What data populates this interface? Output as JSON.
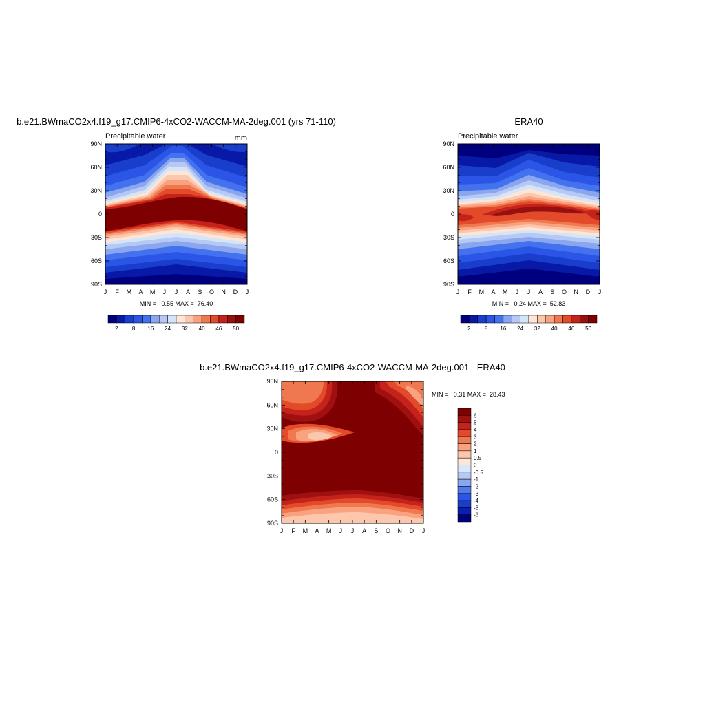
{
  "chart_data": [
    {
      "type": "heatmap",
      "id": "model",
      "title": "b.e21.BWmaCO2x4.f19_g17.CMIP6-4xCO2-WACCM-MA-2deg.001 (yrs 71-110)",
      "subtitle_left": "Precipitable water",
      "subtitle_right": "mm",
      "x": [
        "J",
        "F",
        "M",
        "A",
        "M",
        "J",
        "J",
        "A",
        "S",
        "O",
        "N",
        "D",
        "J"
      ],
      "y": [
        "90S",
        "60S",
        "30S",
        "0",
        "30N",
        "60N",
        "90N"
      ],
      "xlim": [
        0,
        12
      ],
      "ylim": [
        -90,
        90
      ],
      "stats": "MIN =   0.55 MAX =  76.40",
      "colorbar": {
        "levels": [
          2,
          5,
          8,
          12,
          16,
          20,
          24,
          28,
          32,
          36,
          40,
          43,
          46,
          48,
          50
        ],
        "labels": [
          "2",
          "8",
          "16",
          "24",
          "32",
          "40",
          "46",
          "50"
        ],
        "colors": [
          "#00007f",
          "#0719a6",
          "#1a3ecc",
          "#2a55e6",
          "#4472ee",
          "#8aa6ef",
          "#b6c8f4",
          "#d6e4f8",
          "#fde6d6",
          "#fcc7ac",
          "#f9a27f",
          "#f0784f",
          "#e24a2a",
          "#c4221a",
          "#961010",
          "#7f0000"
        ]
      }
    },
    {
      "type": "heatmap",
      "id": "obs",
      "title": "ERA40",
      "subtitle_left": "Precipitable water",
      "x": [
        "J",
        "F",
        "M",
        "A",
        "M",
        "J",
        "J",
        "A",
        "S",
        "O",
        "N",
        "D",
        "J"
      ],
      "y": [
        "90S",
        "60S",
        "30S",
        "0",
        "30N",
        "60N",
        "90N"
      ],
      "xlim": [
        0,
        12
      ],
      "ylim": [
        -90,
        90
      ],
      "stats": "MIN =   0.24 MAX =  52.83",
      "colorbar": {
        "levels": [
          2,
          5,
          8,
          12,
          16,
          20,
          24,
          28,
          32,
          36,
          40,
          43,
          46,
          48,
          50
        ],
        "labels": [
          "2",
          "8",
          "16",
          "24",
          "32",
          "40",
          "46",
          "50"
        ],
        "colors": [
          "#00007f",
          "#0719a6",
          "#1a3ecc",
          "#2a55e6",
          "#4472ee",
          "#8aa6ef",
          "#b6c8f4",
          "#d6e4f8",
          "#fde6d6",
          "#fcc7ac",
          "#f9a27f",
          "#f0784f",
          "#e24a2a",
          "#c4221a",
          "#961010",
          "#7f0000"
        ]
      }
    },
    {
      "type": "heatmap",
      "id": "diff",
      "title": "b.e21.BWmaCO2x4.f19_g17.CMIP6-4xCO2-WACCM-MA-2deg.001 - ERA40",
      "x": [
        "J",
        "F",
        "M",
        "A",
        "M",
        "J",
        "J",
        "A",
        "S",
        "O",
        "N",
        "D",
        "J"
      ],
      "y": [
        "90S",
        "60S",
        "30S",
        "0",
        "30N",
        "60N",
        "90N"
      ],
      "xlim": [
        0,
        12
      ],
      "ylim": [
        -90,
        90
      ],
      "stats": "MIN =   0.31 MAX =  28.43",
      "colorbar": {
        "levels": [
          -6,
          -5,
          -4,
          -3,
          -2,
          -1,
          -0.5,
          0,
          0.5,
          1,
          2,
          3,
          4,
          5,
          6
        ],
        "labels": [
          "-6",
          "-5",
          "-4",
          "-3",
          "-2",
          "-1",
          "-0.5",
          "0",
          "0.5",
          "1",
          "2",
          "3",
          "4",
          "5",
          "6"
        ],
        "colors": [
          "#00007f",
          "#0a1fb0",
          "#1a3ecc",
          "#2a55e6",
          "#4f7bee",
          "#8aa6ef",
          "#b6c8f4",
          "#d9e7fa",
          "#fde6d6",
          "#fcc7ac",
          "#f9a27f",
          "#f0784f",
          "#e24a2a",
          "#c4221a",
          "#a01010",
          "#7f0000"
        ]
      }
    }
  ]
}
